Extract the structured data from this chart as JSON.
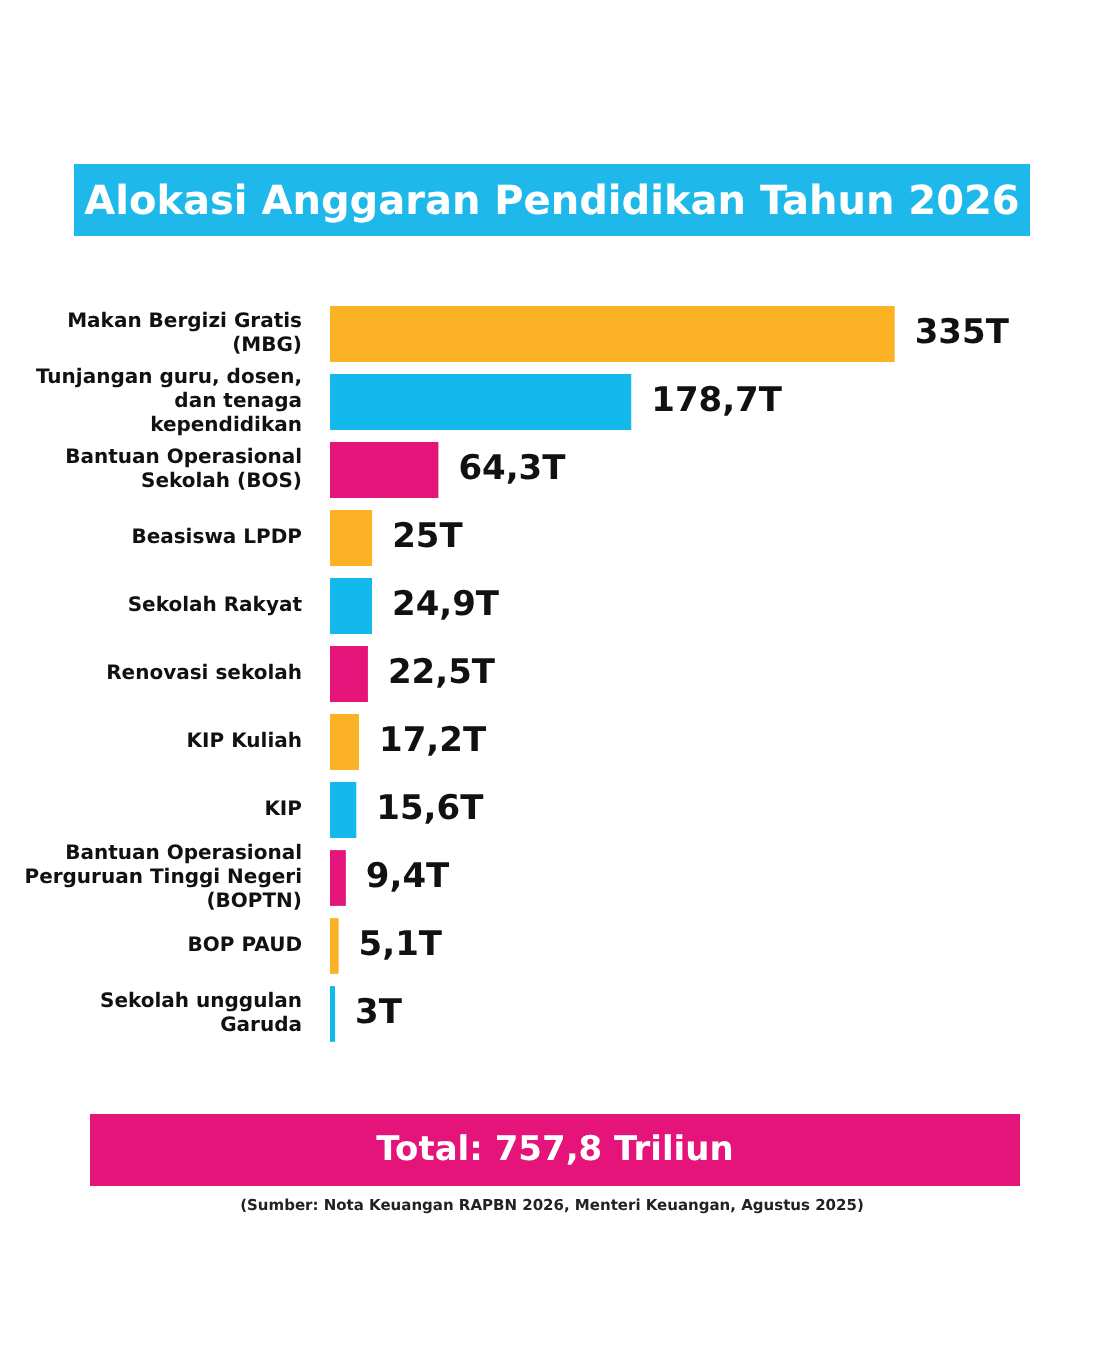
{
  "chart_data": {
    "type": "bar",
    "orientation": "horizontal",
    "tick_labels": "y",
    "title": "Alokasi Anggaran Pendidikan Tahun 2026",
    "categories": [
      "Makan Bergizi Gratis (MBG)",
      "Tunjangan guru, dosen, dan tenaga kependidikan",
      "Bantuan Operasional Sekolah (BOS)",
      "Beasiswa LPDP",
      "Sekolah Rakyat",
      "Renovasi sekolah",
      "KIP Kuliah",
      "KIP",
      "Bantuan Operasional Perguruan Tinggi Negeri (BOPTN)",
      "BOP PAUD",
      "Sekolah unggulan Garuda"
    ],
    "values": [
      335,
      178.7,
      64.3,
      25,
      24.9,
      22.5,
      17.2,
      15.6,
      9.4,
      5.1,
      3
    ],
    "value_labels": [
      "335T",
      "178,7T",
      "64,3T",
      "25T",
      "24,9T",
      "22,5T",
      "17,2T",
      "15,6T",
      "9,4T",
      "5,1T",
      "3T"
    ],
    "colors": [
      "#fbb224",
      "#13b9ec",
      "#e5147a",
      "#fbb224",
      "#13b9ec",
      "#e5147a",
      "#fbb224",
      "#13b9ec",
      "#e5147a",
      "#fbb224",
      "#13b9ec"
    ],
    "annotations": [
      "Total: 757,8 Triliun",
      "(Sumber: Nota Keuangan RAPBN 2026, Menteri Keuangan, Agustus 2025)"
    ],
    "legend": false
  }
}
